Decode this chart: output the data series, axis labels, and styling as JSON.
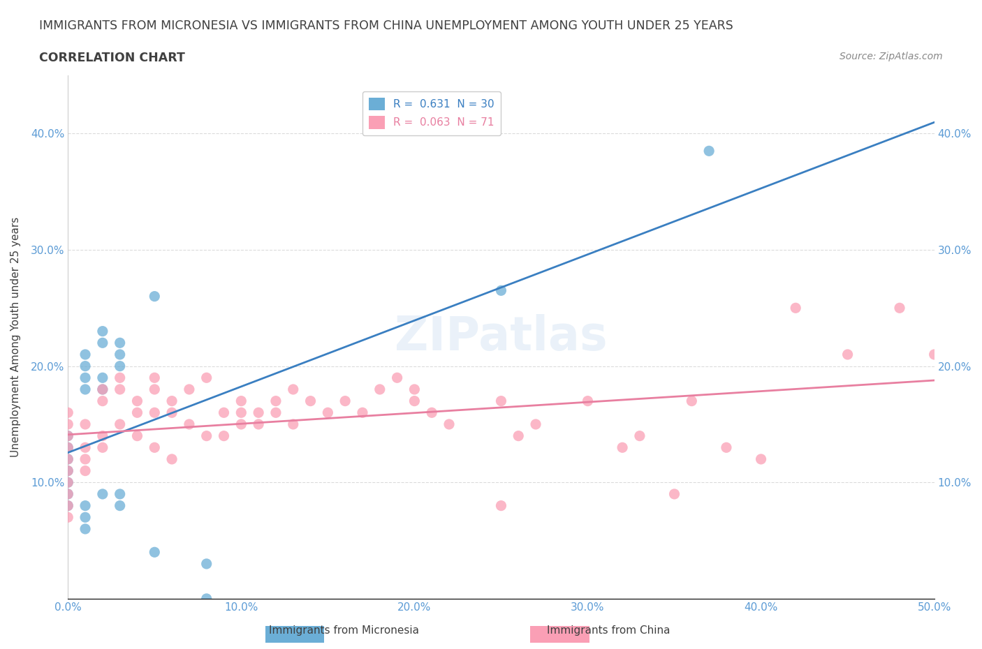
{
  "title_line1": "IMMIGRANTS FROM MICRONESIA VS IMMIGRANTS FROM CHINA UNEMPLOYMENT AMONG YOUTH UNDER 25 YEARS",
  "title_line2": "CORRELATION CHART",
  "source_text": "Source: ZipAtlas.com",
  "xlabel": "",
  "ylabel": "Unemployment Among Youth under 25 years",
  "xlim": [
    0,
    0.5
  ],
  "ylim": [
    0,
    0.45
  ],
  "xticks": [
    0.0,
    0.1,
    0.2,
    0.3,
    0.4,
    0.5
  ],
  "yticks": [
    0.0,
    0.1,
    0.2,
    0.3,
    0.4
  ],
  "xtick_labels": [
    "0.0%",
    "10.0%",
    "20.0%",
    "30.0%",
    "40.0%",
    "50.0%"
  ],
  "ytick_labels": [
    "",
    "10.0%",
    "20.0%",
    "30.0%",
    "40.0%"
  ],
  "right_ytick_labels": [
    "",
    "10.0%",
    "20.0%",
    "30.0%",
    "40.0%"
  ],
  "micronesia_color": "#6baed6",
  "china_color": "#fa9fb5",
  "micronesia_R": 0.631,
  "micronesia_N": 30,
  "china_R": 0.063,
  "china_N": 71,
  "watermark": "ZIPatlas",
  "micronesia_x": [
    0.0,
    0.0,
    0.0,
    0.0,
    0.0,
    0.0,
    0.0,
    0.01,
    0.01,
    0.01,
    0.01,
    0.01,
    0.01,
    0.01,
    0.02,
    0.02,
    0.02,
    0.02,
    0.02,
    0.03,
    0.03,
    0.03,
    0.03,
    0.03,
    0.05,
    0.05,
    0.08,
    0.08,
    0.25,
    0.37
  ],
  "micronesia_y": [
    0.12,
    0.13,
    0.14,
    0.08,
    0.09,
    0.1,
    0.11,
    0.18,
    0.19,
    0.2,
    0.21,
    0.06,
    0.07,
    0.08,
    0.22,
    0.23,
    0.18,
    0.19,
    0.09,
    0.2,
    0.21,
    0.22,
    0.08,
    0.09,
    0.26,
    0.04,
    0.03,
    0.0,
    0.265,
    0.385
  ],
  "china_x": [
    0.0,
    0.0,
    0.0,
    0.0,
    0.0,
    0.0,
    0.0,
    0.0,
    0.0,
    0.0,
    0.01,
    0.01,
    0.01,
    0.01,
    0.02,
    0.02,
    0.02,
    0.02,
    0.03,
    0.03,
    0.03,
    0.04,
    0.04,
    0.04,
    0.05,
    0.05,
    0.05,
    0.05,
    0.06,
    0.06,
    0.06,
    0.07,
    0.07,
    0.08,
    0.08,
    0.09,
    0.09,
    0.1,
    0.1,
    0.1,
    0.11,
    0.11,
    0.12,
    0.12,
    0.13,
    0.13,
    0.14,
    0.15,
    0.16,
    0.17,
    0.18,
    0.19,
    0.2,
    0.2,
    0.21,
    0.22,
    0.25,
    0.25,
    0.26,
    0.27,
    0.3,
    0.32,
    0.33,
    0.35,
    0.36,
    0.38,
    0.4,
    0.42,
    0.45,
    0.48,
    0.5
  ],
  "china_y": [
    0.12,
    0.13,
    0.14,
    0.08,
    0.1,
    0.11,
    0.15,
    0.16,
    0.09,
    0.07,
    0.15,
    0.12,
    0.13,
    0.11,
    0.18,
    0.17,
    0.14,
    0.13,
    0.19,
    0.18,
    0.15,
    0.17,
    0.16,
    0.14,
    0.19,
    0.18,
    0.16,
    0.13,
    0.17,
    0.16,
    0.12,
    0.18,
    0.15,
    0.19,
    0.14,
    0.16,
    0.14,
    0.16,
    0.17,
    0.15,
    0.16,
    0.15,
    0.17,
    0.16,
    0.18,
    0.15,
    0.17,
    0.16,
    0.17,
    0.16,
    0.18,
    0.19,
    0.18,
    0.17,
    0.16,
    0.15,
    0.17,
    0.08,
    0.14,
    0.15,
    0.17,
    0.13,
    0.14,
    0.09,
    0.17,
    0.13,
    0.12,
    0.25,
    0.21,
    0.25,
    0.21
  ],
  "background_color": "#ffffff",
  "grid_color": "#cccccc",
  "legend_box_color": "#ffffff",
  "title_color": "#404040",
  "axis_label_color": "#5b9bd5",
  "tick_color": "#5b9bd5"
}
